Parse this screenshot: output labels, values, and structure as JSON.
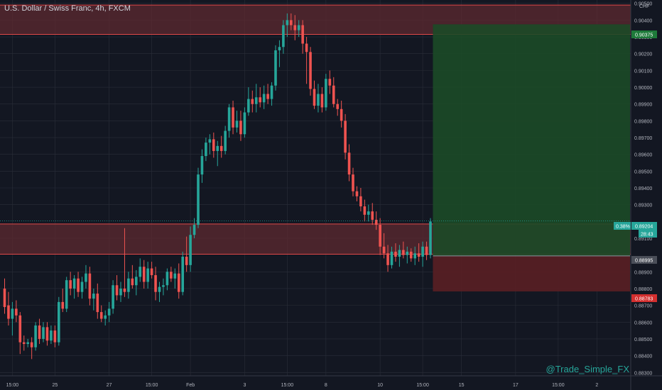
{
  "header": {
    "title": "U.S. Dollar / Swiss Franc, 4h, FXCM"
  },
  "watermark": "@Trade_Simple_FX",
  "colors": {
    "background": "#131722",
    "grid": "#2a2e39",
    "text": "#b2b5be",
    "up": "#26a69a",
    "down": "#ef5350",
    "zone_fill": "#5d2a30",
    "zone_line": "#e04848",
    "target_fill": "#1c4a27",
    "stop_fill": "#5a1f24"
  },
  "chart_data": {
    "type": "candlestick",
    "symbol": "U.S. Dollar / Swiss Franc",
    "timeframe": "4h",
    "source": "FXCM",
    "y_unit": "CHF",
    "ylim": [
      0.8828,
      0.9052
    ],
    "y_ticks": [
      "0.90500",
      "0.90400",
      "0.90300",
      "0.90200",
      "0.90100",
      "0.90000",
      "0.89900",
      "0.89800",
      "0.89700",
      "0.89600",
      "0.89500",
      "0.89400",
      "0.89300",
      "0.89100",
      "0.88900",
      "0.88800",
      "0.88700",
      "0.88600",
      "0.88500",
      "0.88400",
      "0.88300"
    ],
    "y_tick_values": [
      0.905,
      0.904,
      0.903,
      0.902,
      0.901,
      0.9,
      0.899,
      0.898,
      0.897,
      0.896,
      0.895,
      0.894,
      0.893,
      0.891,
      0.889,
      0.888,
      0.887,
      0.886,
      0.885,
      0.884,
      0.883
    ],
    "x_ticks": [
      {
        "label": "15:00",
        "bar": 2
      },
      {
        "label": "25",
        "bar": 13
      },
      {
        "label": "27",
        "bar": 27
      },
      {
        "label": "15:00",
        "bar": 38
      },
      {
        "label": "Feb",
        "bar": 48
      },
      {
        "label": "3",
        "bar": 62
      },
      {
        "label": "15:00",
        "bar": 73
      },
      {
        "label": "8",
        "bar": 83
      },
      {
        "label": "10",
        "bar": 97
      },
      {
        "label": "15:00",
        "bar": 108
      },
      {
        "label": "15",
        "bar": 118
      },
      {
        "label": "17",
        "bar": 132
      },
      {
        "label": "15:00",
        "bar": 143
      },
      {
        "label": "2",
        "bar": 153
      }
    ],
    "zones": [
      {
        "name": "resistance",
        "top": 0.9049,
        "bottom": 0.90315
      },
      {
        "name": "support",
        "top": 0.89185,
        "bottom": 0.89005
      }
    ],
    "position": {
      "entry": 0.88995,
      "target": 0.90375,
      "stop": 0.88783,
      "start_bar": 111,
      "end_bar": 153
    },
    "price_labels": {
      "target": "0.90375",
      "entry": "0.88995",
      "stop": "0.88783",
      "current": "0.89204",
      "change": "0.38%",
      "countdown": "28:43"
    },
    "current_price": 0.89204,
    "candles": [
      {
        "o": 0.888,
        "h": 0.8886,
        "l": 0.8865,
        "c": 0.8869
      },
      {
        "o": 0.887,
        "h": 0.8878,
        "l": 0.8858,
        "c": 0.8862
      },
      {
        "o": 0.8862,
        "h": 0.8872,
        "l": 0.8852,
        "c": 0.8868
      },
      {
        "o": 0.8868,
        "h": 0.8873,
        "l": 0.886,
        "c": 0.8864
      },
      {
        "o": 0.8864,
        "h": 0.8866,
        "l": 0.8841,
        "c": 0.8848
      },
      {
        "o": 0.8848,
        "h": 0.8852,
        "l": 0.8843,
        "c": 0.8847
      },
      {
        "o": 0.8847,
        "h": 0.885,
        "l": 0.8845,
        "c": 0.8848
      },
      {
        "o": 0.8848,
        "h": 0.8851,
        "l": 0.8838,
        "c": 0.8845
      },
      {
        "o": 0.8845,
        "h": 0.886,
        "l": 0.8843,
        "c": 0.8858
      },
      {
        "o": 0.8858,
        "h": 0.8862,
        "l": 0.8847,
        "c": 0.885
      },
      {
        "o": 0.885,
        "h": 0.886,
        "l": 0.8848,
        "c": 0.8857
      },
      {
        "o": 0.8857,
        "h": 0.886,
        "l": 0.8846,
        "c": 0.8849
      },
      {
        "o": 0.8849,
        "h": 0.8858,
        "l": 0.8847,
        "c": 0.8855
      },
      {
        "o": 0.8855,
        "h": 0.8858,
        "l": 0.8845,
        "c": 0.8848
      },
      {
        "o": 0.8848,
        "h": 0.8875,
        "l": 0.8846,
        "c": 0.8872
      },
      {
        "o": 0.8872,
        "h": 0.888,
        "l": 0.8866,
        "c": 0.8868
      },
      {
        "o": 0.8868,
        "h": 0.8887,
        "l": 0.8866,
        "c": 0.8885
      },
      {
        "o": 0.8885,
        "h": 0.889,
        "l": 0.8876,
        "c": 0.888
      },
      {
        "o": 0.888,
        "h": 0.8888,
        "l": 0.8874,
        "c": 0.8886
      },
      {
        "o": 0.8886,
        "h": 0.889,
        "l": 0.8875,
        "c": 0.8878
      },
      {
        "o": 0.8878,
        "h": 0.8887,
        "l": 0.8874,
        "c": 0.8884
      },
      {
        "o": 0.8884,
        "h": 0.8894,
        "l": 0.888,
        "c": 0.8889
      },
      {
        "o": 0.8889,
        "h": 0.8893,
        "l": 0.887,
        "c": 0.8874
      },
      {
        "o": 0.8874,
        "h": 0.888,
        "l": 0.8867,
        "c": 0.8877
      },
      {
        "o": 0.8877,
        "h": 0.8883,
        "l": 0.8862,
        "c": 0.8866
      },
      {
        "o": 0.8866,
        "h": 0.887,
        "l": 0.886,
        "c": 0.8862
      },
      {
        "o": 0.8862,
        "h": 0.8867,
        "l": 0.8858,
        "c": 0.8864
      },
      {
        "o": 0.8864,
        "h": 0.8872,
        "l": 0.886,
        "c": 0.8868
      },
      {
        "o": 0.8868,
        "h": 0.8885,
        "l": 0.8865,
        "c": 0.8882
      },
      {
        "o": 0.8882,
        "h": 0.8888,
        "l": 0.8873,
        "c": 0.8876
      },
      {
        "o": 0.8876,
        "h": 0.8884,
        "l": 0.8872,
        "c": 0.888
      },
      {
        "o": 0.888,
        "h": 0.8916,
        "l": 0.8875,
        "c": 0.8878
      },
      {
        "o": 0.8878,
        "h": 0.889,
        "l": 0.8874,
        "c": 0.8886
      },
      {
        "o": 0.8886,
        "h": 0.8894,
        "l": 0.888,
        "c": 0.8882
      },
      {
        "o": 0.8882,
        "h": 0.8891,
        "l": 0.8876,
        "c": 0.8887
      },
      {
        "o": 0.8887,
        "h": 0.8898,
        "l": 0.8884,
        "c": 0.8893
      },
      {
        "o": 0.8893,
        "h": 0.8897,
        "l": 0.888,
        "c": 0.8884
      },
      {
        "o": 0.8884,
        "h": 0.8896,
        "l": 0.888,
        "c": 0.8892
      },
      {
        "o": 0.8892,
        "h": 0.8896,
        "l": 0.8886,
        "c": 0.8888
      },
      {
        "o": 0.8888,
        "h": 0.8893,
        "l": 0.8873,
        "c": 0.8878
      },
      {
        "o": 0.8878,
        "h": 0.8884,
        "l": 0.8872,
        "c": 0.8881
      },
      {
        "o": 0.8881,
        "h": 0.8886,
        "l": 0.8876,
        "c": 0.8882
      },
      {
        "o": 0.8882,
        "h": 0.8892,
        "l": 0.8879,
        "c": 0.889
      },
      {
        "o": 0.889,
        "h": 0.8893,
        "l": 0.8884,
        "c": 0.8886
      },
      {
        "o": 0.8886,
        "h": 0.8892,
        "l": 0.888,
        "c": 0.8889
      },
      {
        "o": 0.8889,
        "h": 0.8895,
        "l": 0.8874,
        "c": 0.8878
      },
      {
        "o": 0.8878,
        "h": 0.8902,
        "l": 0.8876,
        "c": 0.8899
      },
      {
        "o": 0.8899,
        "h": 0.8911,
        "l": 0.889,
        "c": 0.8894
      },
      {
        "o": 0.8894,
        "h": 0.8917,
        "l": 0.889,
        "c": 0.8912
      },
      {
        "o": 0.8912,
        "h": 0.8922,
        "l": 0.891,
        "c": 0.8918
      },
      {
        "o": 0.8918,
        "h": 0.8952,
        "l": 0.8916,
        "c": 0.8948
      },
      {
        "o": 0.8948,
        "h": 0.8963,
        "l": 0.8943,
        "c": 0.8959
      },
      {
        "o": 0.8959,
        "h": 0.897,
        "l": 0.8956,
        "c": 0.8967
      },
      {
        "o": 0.8967,
        "h": 0.8972,
        "l": 0.896,
        "c": 0.8969
      },
      {
        "o": 0.8969,
        "h": 0.8973,
        "l": 0.8958,
        "c": 0.8962
      },
      {
        "o": 0.8962,
        "h": 0.8968,
        "l": 0.8953,
        "c": 0.8965
      },
      {
        "o": 0.8965,
        "h": 0.8971,
        "l": 0.8958,
        "c": 0.8962
      },
      {
        "o": 0.8962,
        "h": 0.8977,
        "l": 0.896,
        "c": 0.8974
      },
      {
        "o": 0.8974,
        "h": 0.899,
        "l": 0.897,
        "c": 0.8988
      },
      {
        "o": 0.8988,
        "h": 0.8992,
        "l": 0.8972,
        "c": 0.8976
      },
      {
        "o": 0.8976,
        "h": 0.8986,
        "l": 0.8973,
        "c": 0.898
      },
      {
        "o": 0.898,
        "h": 0.8986,
        "l": 0.8968,
        "c": 0.8972
      },
      {
        "o": 0.8972,
        "h": 0.8988,
        "l": 0.897,
        "c": 0.8985
      },
      {
        "o": 0.8985,
        "h": 0.9,
        "l": 0.8983,
        "c": 0.8993
      },
      {
        "o": 0.8993,
        "h": 0.8998,
        "l": 0.8985,
        "c": 0.899
      },
      {
        "o": 0.899,
        "h": 0.9002,
        "l": 0.8985,
        "c": 0.8994
      },
      {
        "o": 0.8994,
        "h": 0.9,
        "l": 0.8988,
        "c": 0.8991
      },
      {
        "o": 0.8991,
        "h": 0.9001,
        "l": 0.8987,
        "c": 0.8996
      },
      {
        "o": 0.8996,
        "h": 0.9002,
        "l": 0.899,
        "c": 0.8993
      },
      {
        "o": 0.8993,
        "h": 0.9003,
        "l": 0.8989,
        "c": 0.9001
      },
      {
        "o": 0.9001,
        "h": 0.9025,
        "l": 0.8998,
        "c": 0.9022
      },
      {
        "o": 0.9022,
        "h": 0.9028,
        "l": 0.9012,
        "c": 0.9024
      },
      {
        "o": 0.9024,
        "h": 0.904,
        "l": 0.902,
        "c": 0.9037
      },
      {
        "o": 0.9037,
        "h": 0.9044,
        "l": 0.903,
        "c": 0.904
      },
      {
        "o": 0.904,
        "h": 0.9044,
        "l": 0.9034,
        "c": 0.9037
      },
      {
        "o": 0.9037,
        "h": 0.9043,
        "l": 0.9028,
        "c": 0.9034
      },
      {
        "o": 0.9034,
        "h": 0.904,
        "l": 0.903,
        "c": 0.9037
      },
      {
        "o": 0.9037,
        "h": 0.904,
        "l": 0.902,
        "c": 0.9026
      },
      {
        "o": 0.9026,
        "h": 0.903,
        "l": 0.9002,
        "c": 0.9021
      },
      {
        "o": 0.9021,
        "h": 0.9024,
        "l": 0.8995,
        "c": 0.8999
      },
      {
        "o": 0.8999,
        "h": 0.9004,
        "l": 0.8987,
        "c": 0.8989
      },
      {
        "o": 0.8989,
        "h": 0.9002,
        "l": 0.8985,
        "c": 0.8996
      },
      {
        "o": 0.8996,
        "h": 0.9,
        "l": 0.8985,
        "c": 0.8988
      },
      {
        "o": 0.8988,
        "h": 0.9008,
        "l": 0.8986,
        "c": 0.9005
      },
      {
        "o": 0.9005,
        "h": 0.901,
        "l": 0.8996,
        "c": 0.9001
      },
      {
        "o": 0.9001,
        "h": 0.9006,
        "l": 0.8988,
        "c": 0.899
      },
      {
        "o": 0.899,
        "h": 0.8993,
        "l": 0.8983,
        "c": 0.8987
      },
      {
        "o": 0.8987,
        "h": 0.8992,
        "l": 0.8976,
        "c": 0.898
      },
      {
        "o": 0.898,
        "h": 0.8984,
        "l": 0.8957,
        "c": 0.8961
      },
      {
        "o": 0.8961,
        "h": 0.8966,
        "l": 0.8944,
        "c": 0.8948
      },
      {
        "o": 0.8948,
        "h": 0.8952,
        "l": 0.8935,
        "c": 0.8938
      },
      {
        "o": 0.8938,
        "h": 0.8941,
        "l": 0.8932,
        "c": 0.8935
      },
      {
        "o": 0.8935,
        "h": 0.894,
        "l": 0.8926,
        "c": 0.8929
      },
      {
        "o": 0.8929,
        "h": 0.8933,
        "l": 0.892,
        "c": 0.8924
      },
      {
        "o": 0.8924,
        "h": 0.893,
        "l": 0.892,
        "c": 0.8926
      },
      {
        "o": 0.8926,
        "h": 0.8931,
        "l": 0.8918,
        "c": 0.8921
      },
      {
        "o": 0.8921,
        "h": 0.8926,
        "l": 0.8915,
        "c": 0.8918
      },
      {
        "o": 0.8918,
        "h": 0.8922,
        "l": 0.89,
        "c": 0.8905
      },
      {
        "o": 0.8905,
        "h": 0.8913,
        "l": 0.8898,
        "c": 0.8901
      },
      {
        "o": 0.8901,
        "h": 0.8906,
        "l": 0.889,
        "c": 0.8894
      },
      {
        "o": 0.8894,
        "h": 0.8905,
        "l": 0.8892,
        "c": 0.8902
      },
      {
        "o": 0.8902,
        "h": 0.8907,
        "l": 0.8896,
        "c": 0.8899
      },
      {
        "o": 0.8899,
        "h": 0.8906,
        "l": 0.8893,
        "c": 0.8903
      },
      {
        "o": 0.8903,
        "h": 0.8908,
        "l": 0.8898,
        "c": 0.89
      },
      {
        "o": 0.89,
        "h": 0.8905,
        "l": 0.8895,
        "c": 0.8902
      },
      {
        "o": 0.8902,
        "h": 0.8904,
        "l": 0.8896,
        "c": 0.8898
      },
      {
        "o": 0.8898,
        "h": 0.8905,
        "l": 0.8894,
        "c": 0.8901
      },
      {
        "o": 0.8901,
        "h": 0.8907,
        "l": 0.8896,
        "c": 0.8899
      },
      {
        "o": 0.8899,
        "h": 0.8908,
        "l": 0.8893,
        "c": 0.8905
      },
      {
        "o": 0.8905,
        "h": 0.8908,
        "l": 0.8897,
        "c": 0.89
      },
      {
        "o": 0.89,
        "h": 0.8922,
        "l": 0.8898,
        "c": 0.892
      }
    ]
  }
}
